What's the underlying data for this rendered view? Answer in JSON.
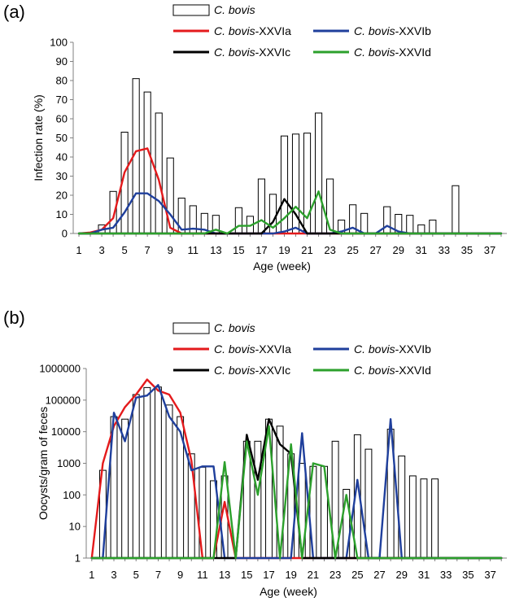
{
  "chart_data": [
    {
      "panel_label": "(a)",
      "type": "bar+line",
      "xlabel": "Age (week)",
      "ylabel": "Infection rate (%)",
      "ylim": [
        0,
        100
      ],
      "yticks": [
        0,
        10,
        20,
        30,
        40,
        50,
        60,
        70,
        80,
        90,
        100
      ],
      "xlim": [
        0.5,
        38.5
      ],
      "xticks": [
        1,
        3,
        5,
        7,
        9,
        11,
        13,
        15,
        17,
        19,
        21,
        23,
        25,
        27,
        29,
        31,
        33,
        35,
        37
      ],
      "legend": [
        {
          "italic": "C. bovis",
          "suffix": "",
          "kind": "bar",
          "color": "#000000"
        },
        {
          "italic": "C. bovis",
          "suffix": "-XXVIa",
          "kind": "line",
          "color": "#e41a1c"
        },
        {
          "italic": "C. bovis",
          "suffix": "-XXVIb",
          "kind": "line",
          "color": "#1f3f9c"
        },
        {
          "italic": "C. bovis",
          "suffix": "-XXVIc",
          "kind": "line",
          "color": "#000000"
        },
        {
          "italic": "C. bovis",
          "suffix": "-XXVId",
          "kind": "line",
          "color": "#2ca02c"
        }
      ],
      "bars": {
        "x": [
          1,
          2,
          3,
          4,
          5,
          6,
          7,
          8,
          9,
          10,
          11,
          12,
          13,
          14,
          15,
          16,
          17,
          18,
          19,
          20,
          21,
          22,
          23,
          24,
          25,
          26,
          27,
          28,
          29,
          30,
          31,
          32,
          33,
          34,
          35,
          36,
          37
        ],
        "values": [
          0,
          0.5,
          4.5,
          22,
          53,
          81,
          74,
          63,
          39.5,
          18.5,
          14.5,
          10.5,
          9.5,
          0,
          13.5,
          9,
          28.5,
          20.5,
          51,
          52,
          52.5,
          63,
          28.5,
          7,
          15,
          10.5,
          0,
          14,
          10,
          9.5,
          4.5,
          7,
          0,
          25,
          0,
          0,
          0
        ]
      },
      "lines": [
        {
          "name": "C. bovis-XXVIa",
          "color": "#e41a1c",
          "x": [
            1,
            2,
            3,
            4,
            5,
            6,
            7,
            8,
            9,
            10,
            11,
            12,
            13,
            14,
            15,
            16,
            17,
            18,
            19,
            20,
            21,
            22,
            23,
            24,
            25,
            26,
            27,
            28,
            29,
            30,
            31,
            32,
            33,
            34,
            35,
            36,
            37,
            38
          ],
          "values": [
            0,
            0.5,
            2,
            8,
            32,
            43,
            44.5,
            28,
            3,
            0,
            0,
            0,
            0,
            0,
            0,
            0,
            0,
            0,
            0,
            0,
            0,
            0,
            0,
            0,
            0,
            0,
            0,
            0,
            0,
            0,
            0,
            0,
            0,
            0,
            0,
            0,
            0,
            0
          ]
        },
        {
          "name": "C. bovis-XXVIb",
          "color": "#1f3f9c",
          "x": [
            1,
            2,
            3,
            4,
            5,
            6,
            7,
            8,
            9,
            10,
            11,
            12,
            13,
            14,
            15,
            16,
            17,
            18,
            19,
            20,
            21,
            22,
            23,
            24,
            25,
            26,
            27,
            28,
            29,
            30,
            31,
            32,
            33,
            34,
            35,
            36,
            37,
            38
          ],
          "values": [
            0,
            0,
            2,
            3,
            11,
            21,
            21,
            17,
            10,
            2,
            2.5,
            2,
            0,
            0,
            0,
            0,
            0,
            0,
            1,
            3,
            0,
            0,
            0,
            1,
            3,
            0,
            0,
            4,
            1,
            0,
            0,
            0,
            0,
            0,
            0,
            0,
            0,
            0
          ]
        },
        {
          "name": "C. bovis-XXVIc",
          "color": "#000000",
          "x": [
            1,
            2,
            3,
            4,
            5,
            6,
            7,
            8,
            9,
            10,
            11,
            12,
            13,
            14,
            15,
            16,
            17,
            18,
            19,
            20,
            21,
            22,
            23,
            24,
            25,
            26,
            27,
            28,
            29,
            30,
            31,
            32,
            33,
            34,
            35,
            36,
            37,
            38
          ],
          "values": [
            0,
            0,
            0,
            0,
            0,
            0,
            0,
            0,
            0,
            0,
            0,
            0,
            0,
            0,
            0,
            0,
            0,
            6,
            18,
            10,
            0,
            0,
            0,
            0,
            0,
            0,
            0,
            0,
            0,
            0,
            0,
            0,
            0,
            0,
            0,
            0,
            0,
            0
          ]
        },
        {
          "name": "C. bovis-XXVId",
          "color": "#2ca02c",
          "x": [
            1,
            2,
            3,
            4,
            5,
            6,
            7,
            8,
            9,
            10,
            11,
            12,
            13,
            14,
            15,
            16,
            17,
            18,
            19,
            20,
            21,
            22,
            23,
            24,
            25,
            26,
            27,
            28,
            29,
            30,
            31,
            32,
            33,
            34,
            35,
            36,
            37,
            38
          ],
          "values": [
            0,
            0,
            0,
            0,
            0,
            0,
            0,
            0,
            0,
            0,
            0,
            0,
            2,
            0,
            4,
            4,
            7,
            3,
            8,
            14,
            8,
            22,
            2,
            0,
            0,
            0,
            0,
            0,
            0,
            0,
            0,
            0,
            0,
            0,
            0,
            0,
            0,
            0
          ]
        }
      ]
    },
    {
      "panel_label": "(b)",
      "type": "bar+line",
      "xlabel": "Age (week)",
      "ylabel": "Oocysts/gram of feces",
      "yscale": "log",
      "ylim": [
        1,
        1000000
      ],
      "yticks": [
        1,
        10,
        100,
        1000,
        10000,
        100000,
        1000000
      ],
      "ytick_labels": [
        "1",
        "10",
        "100",
        "1000",
        "10000",
        "100000",
        "1000000"
      ],
      "xlim": [
        0.5,
        38.5
      ],
      "xticks": [
        1,
        3,
        5,
        7,
        9,
        11,
        13,
        15,
        17,
        19,
        21,
        23,
        25,
        27,
        29,
        31,
        33,
        35,
        37
      ],
      "legend": [
        {
          "italic": "C. bovis",
          "suffix": "",
          "kind": "bar",
          "color": "#000000"
        },
        {
          "italic": "C. bovis",
          "suffix": "-XXVIa",
          "kind": "line",
          "color": "#e41a1c"
        },
        {
          "italic": "C. bovis",
          "suffix": "-XXVIb",
          "kind": "line",
          "color": "#1f3f9c"
        },
        {
          "italic": "C. bovis",
          "suffix": "-XXVIc",
          "kind": "line",
          "color": "#000000"
        },
        {
          "italic": "C. bovis",
          "suffix": "-XXVId",
          "kind": "line",
          "color": "#2ca02c"
        }
      ],
      "bars": {
        "x": [
          2,
          3,
          4,
          5,
          6,
          7,
          8,
          9,
          10,
          11,
          12,
          13,
          14,
          15,
          16,
          17,
          18,
          19,
          20,
          21,
          22,
          23,
          24,
          25,
          26,
          27,
          28,
          29,
          30,
          31,
          32
        ],
        "values": [
          600,
          30000,
          25000,
          150000,
          250000,
          260000,
          70000,
          30000,
          2000,
          750,
          280,
          400,
          0,
          5000,
          5000,
          25000,
          15000,
          2000,
          1000,
          800,
          800,
          5000,
          150,
          8000,
          2800,
          0,
          12000,
          1700,
          400,
          320,
          320
        ]
      },
      "lines": [
        {
          "name": "C. bovis-XXVIa",
          "color": "#e41a1c",
          "x": [
            1,
            2,
            3,
            4,
            5,
            6,
            7,
            8,
            9,
            10,
            11,
            12,
            13,
            14,
            15,
            16,
            17,
            18,
            19,
            20,
            21,
            22,
            23,
            24,
            25,
            26,
            27,
            28,
            29,
            30,
            31,
            32,
            33,
            34,
            35,
            36,
            37,
            38
          ],
          "values": [
            1,
            1000,
            15000,
            60000,
            150000,
            450000,
            200000,
            150000,
            40000,
            1200,
            1,
            1,
            60,
            1,
            1,
            1,
            1,
            1,
            1,
            1,
            1,
            1,
            1,
            1,
            1,
            1,
            1,
            1,
            1,
            1,
            1,
            1,
            1,
            1,
            1,
            1,
            1,
            1
          ]
        },
        {
          "name": "C. bovis-XXVIb",
          "color": "#1f3f9c",
          "x": [
            1,
            2,
            3,
            4,
            5,
            6,
            7,
            8,
            9,
            10,
            11,
            12,
            13,
            14,
            15,
            16,
            17,
            18,
            19,
            20,
            21,
            22,
            23,
            24,
            25,
            26,
            27,
            28,
            29,
            30,
            31,
            32,
            33,
            34,
            35,
            36,
            37,
            38
          ],
          "values": [
            1,
            1,
            40000,
            5000,
            120000,
            140000,
            300000,
            30000,
            10000,
            600,
            800,
            800,
            1,
            1,
            1,
            1,
            1,
            1,
            1,
            9000,
            1,
            1,
            1,
            1,
            300,
            1,
            1,
            25000,
            1,
            1,
            1,
            1,
            1,
            1,
            1,
            1,
            1,
            1
          ]
        },
        {
          "name": "C. bovis-XXVIc",
          "color": "#000000",
          "x": [
            1,
            2,
            3,
            4,
            5,
            6,
            7,
            8,
            9,
            10,
            11,
            12,
            13,
            14,
            15,
            16,
            17,
            18,
            19,
            20,
            21,
            22,
            23,
            24,
            25,
            26,
            27,
            28,
            29,
            30,
            31,
            32,
            33,
            34,
            35,
            36,
            37,
            38
          ],
          "values": [
            1,
            1,
            1,
            1,
            1,
            1,
            1,
            1,
            1,
            1,
            1,
            1,
            1,
            1,
            8000,
            300,
            25000,
            4000,
            2000,
            1,
            1,
            1,
            1,
            1,
            1,
            1,
            1,
            1,
            1,
            1,
            1,
            1,
            1,
            1,
            1,
            1,
            1,
            1
          ]
        },
        {
          "name": "C. bovis-XXVId",
          "color": "#2ca02c",
          "x": [
            1,
            2,
            3,
            4,
            5,
            6,
            7,
            8,
            9,
            10,
            11,
            12,
            13,
            14,
            15,
            16,
            17,
            18,
            19,
            20,
            21,
            22,
            23,
            24,
            25,
            26,
            27,
            28,
            29,
            30,
            31,
            32,
            33,
            34,
            35,
            36,
            37,
            38
          ],
          "values": [
            1,
            1,
            1,
            1,
            1,
            1,
            1,
            1,
            1,
            1,
            1,
            1,
            1100,
            1,
            5000,
            100,
            15000,
            1,
            4000,
            1,
            1000,
            800,
            1,
            100,
            1,
            1,
            1,
            1,
            1,
            1,
            1,
            1,
            1,
            1,
            1,
            1,
            1,
            1
          ]
        }
      ]
    }
  ]
}
